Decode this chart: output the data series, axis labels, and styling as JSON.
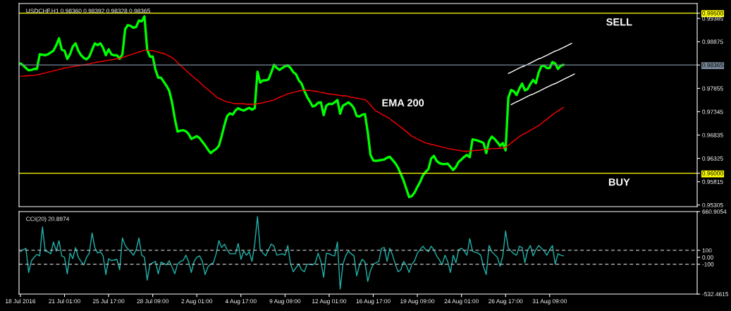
{
  "chart_data": [
    {
      "type": "line",
      "title": "USDCHF,H1 0.98360 0.98392 0.98328 0.98365",
      "categories": [
        null,
        null,
        null,
        null,
        null,
        null,
        null,
        null,
        null,
        null,
        null,
        null,
        null,
        null,
        null,
        null,
        null,
        null,
        null,
        null,
        null,
        null,
        null,
        null,
        null,
        null,
        null,
        null,
        null,
        null,
        null,
        null,
        null,
        null,
        null,
        null,
        null,
        null,
        null,
        null,
        null,
        null,
        null,
        null,
        null,
        null,
        null,
        null,
        null,
        null,
        null,
        null,
        null,
        null,
        null,
        null,
        null,
        null,
        null,
        null,
        null,
        null,
        null,
        null,
        null,
        null,
        null,
        null,
        null,
        null,
        null,
        null,
        null,
        null,
        null,
        null,
        null,
        null,
        null,
        null,
        null,
        null,
        null,
        null,
        null,
        null,
        null,
        null,
        null,
        null,
        null,
        null,
        null,
        null,
        null,
        null,
        null,
        null,
        null,
        null,
        null,
        null,
        null,
        null,
        null,
        null,
        null,
        null,
        null,
        null,
        null,
        null,
        null,
        null,
        null,
        null,
        null,
        null,
        null,
        null,
        null,
        null,
        null,
        null,
        null,
        null,
        null,
        null,
        null,
        null,
        null,
        null,
        null,
        null,
        null,
        null,
        null,
        null,
        null,
        null,
        null,
        null,
        null,
        null,
        null,
        null,
        null,
        null,
        null,
        null,
        null,
        null,
        null,
        null,
        null,
        null,
        null,
        null,
        null,
        null,
        null,
        null,
        null,
        null,
        null,
        null,
        null,
        null,
        null,
        null,
        null,
        null,
        null,
        null,
        null,
        null,
        null,
        null,
        null,
        null,
        null,
        null,
        null,
        null,
        null,
        null,
        null,
        null,
        null,
        null,
        null,
        null,
        null,
        null,
        null,
        null,
        null,
        null,
        null,
        null,
        null,
        null,
        null,
        null,
        null,
        null,
        null,
        null,
        null,
        null,
        null,
        null,
        null,
        null,
        null,
        null,
        null,
        null,
        null,
        null,
        null,
        null,
        null,
        null,
        null,
        null,
        null,
        null,
        null,
        null,
        null,
        null,
        null,
        null,
        null,
        null,
        null,
        null,
        null,
        null,
        null,
        null,
        null,
        null,
        null,
        null
      ],
      "tick_labels": "y",
      "ylim": [
        0.9527,
        0.9971
      ],
      "yticks": [
        {
          "value": 0.995,
          "label": "0.99500"
        },
        0.99385,
        0.98875,
        0.98365,
        0.97855,
        0.97345,
        0.96835,
        0.96325,
        {
          "value": 0.96,
          "label": "0.96000"
        },
        0.95815,
        0.95305
      ],
      "series": [
        {
          "color": "#00ff00",
          "values": [
            0.984,
            0.9836,
            0.983,
            0.9825,
            0.9826,
            0.9828,
            0.9828,
            0.986,
            0.9859,
            0.9858,
            0.986,
            0.9864,
            0.9868,
            0.988,
            0.9895,
            0.987,
            0.9868,
            0.985,
            0.986,
            0.9877,
            0.9884,
            0.9868,
            0.9858,
            0.9852,
            0.9849,
            0.9855,
            0.987,
            0.9884,
            0.988,
            0.9884,
            0.9874,
            0.9858,
            0.9871,
            0.986,
            0.9858,
            0.9858,
            0.985,
            0.986,
            0.9915,
            0.9924,
            0.9922,
            0.9918,
            0.992,
            0.9934,
            0.9932,
            0.9943,
            0.987,
            0.9855,
            0.9855,
            0.9826,
            0.9809,
            0.9809,
            0.98,
            0.9791,
            0.978,
            0.9755,
            0.972,
            0.9691,
            0.9693,
            0.9694,
            0.9692,
            0.9686,
            0.9675,
            0.9678,
            0.9681,
            0.9677,
            0.9669,
            0.9661,
            0.9652,
            0.9644,
            0.9649,
            0.9653,
            0.966,
            0.9681,
            0.9705,
            0.9725,
            0.9731,
            0.9728,
            0.9737,
            0.9742,
            0.9739,
            0.9737,
            0.974,
            0.9743,
            0.9739,
            0.9742,
            0.9822,
            0.9798,
            0.9803,
            0.9803,
            0.9805,
            0.982,
            0.9837,
            0.983,
            0.9826,
            0.983,
            0.9834,
            0.9836,
            0.983,
            0.9821,
            0.9816,
            0.9803,
            0.9796,
            0.978,
            0.9767,
            0.9757,
            0.9746,
            0.9748,
            0.9754,
            0.9755,
            0.9727,
            0.9748,
            0.9752,
            0.9751,
            0.9755,
            0.976,
            0.973,
            0.9748,
            0.9751,
            0.9755,
            0.975,
            0.9742,
            0.9725,
            0.9724,
            0.9728,
            0.9729,
            0.969,
            0.964,
            0.9628,
            0.9627,
            0.9628,
            0.9629,
            0.963,
            0.9634,
            0.9636,
            0.9629,
            0.9622,
            0.9612,
            0.9598,
            0.9584,
            0.9566,
            0.9548,
            0.955,
            0.9558,
            0.957,
            0.9581,
            0.9595,
            0.9603,
            0.9609,
            0.9632,
            0.9638,
            0.9627,
            0.9622,
            0.962,
            0.962,
            0.9621,
            0.9614,
            0.9607,
            0.9614,
            0.9625,
            0.963,
            0.9636,
            0.964,
            0.9635,
            0.9674,
            0.9673,
            0.9671,
            0.9669,
            0.9666,
            0.9644,
            0.967,
            0.968,
            0.9675,
            0.9668,
            0.966,
            0.9666,
            0.965,
            0.9765,
            0.9782,
            0.9779,
            0.9771,
            0.9785,
            0.9796,
            0.9781,
            0.9784,
            0.9795,
            0.9804,
            0.9797,
            0.982,
            0.9834,
            0.9835,
            0.983,
            0.983,
            0.9843,
            0.984,
            0.9828,
            0.9835,
            0.9837,
            null,
            null,
            null,
            null,
            null,
            null,
            null,
            null,
            null,
            null,
            null,
            null,
            null,
            null,
            null,
            null,
            null,
            null,
            null,
            null,
            null,
            null,
            null,
            null,
            null,
            null,
            null,
            null,
            null,
            null,
            null,
            null,
            null,
            null,
            null,
            null,
            null,
            null,
            null,
            null,
            null,
            null,
            null,
            null,
            null,
            null,
            null,
            null
          ]
        },
        {
          "name": "EMA 200",
          "color": "#ff0000",
          "values": [
            0.9812,
            0.9812,
            0.9813,
            0.9813,
            0.9814,
            0.9814,
            0.9815,
            0.9816,
            0.9818,
            0.9819,
            0.9821,
            0.9822,
            0.9824,
            0.9825,
            0.9827,
            0.9828,
            0.983,
            0.9831,
            0.9832,
            0.9833,
            0.9834,
            0.9835,
            0.9836,
            0.9837,
            0.9838,
            0.9839,
            0.9841,
            0.9842,
            0.9843,
            0.9844,
            0.9845,
            0.9846,
            0.9847,
            0.9848,
            0.9849,
            0.985,
            0.9851,
            0.9853,
            0.9855,
            0.9857,
            0.9859,
            0.9861,
            0.9863,
            0.9865,
            0.9867,
            0.9869,
            0.9869,
            0.9868,
            0.9868,
            0.9866,
            0.9865,
            0.9863,
            0.9862,
            0.9859,
            0.9856,
            0.9853,
            0.9848,
            0.9842,
            0.9836,
            0.9831,
            0.9825,
            0.982,
            0.9814,
            0.9809,
            0.9804,
            0.9799,
            0.9793,
            0.9788,
            0.9783,
            0.9778,
            0.9773,
            0.9767,
            0.9764,
            0.9761,
            0.9758,
            0.9756,
            0.9755,
            0.9753,
            0.9752,
            0.9752,
            0.9752,
            0.9752,
            0.9751,
            0.9751,
            0.9751,
            0.9751,
            0.9752,
            0.9753,
            0.9754,
            0.9756,
            0.9757,
            0.9759,
            0.976,
            0.9763,
            0.9766,
            0.9768,
            0.9771,
            0.9774,
            0.9775,
            0.9777,
            0.9778,
            0.978,
            0.9781,
            0.9781,
            0.9781,
            0.9781,
            0.978,
            0.9779,
            0.9778,
            0.9777,
            0.9776,
            0.9774,
            0.9773,
            0.9773,
            0.9772,
            0.9771,
            0.977,
            0.9769,
            0.9769,
            0.9768,
            0.9766,
            0.9765,
            0.9764,
            0.9763,
            0.9762,
            0.9761,
            0.9756,
            0.9749,
            0.9742,
            0.9736,
            0.9733,
            0.9729,
            0.9726,
            0.9723,
            0.9719,
            0.9714,
            0.971,
            0.9705,
            0.9701,
            0.9696,
            0.9691,
            0.9686,
            0.9681,
            0.9678,
            0.9675,
            0.9672,
            0.9669,
            0.9666,
            0.9665,
            0.9663,
            0.9662,
            0.966,
            0.9659,
            0.9657,
            0.9656,
            0.9654,
            0.9653,
            0.9652,
            0.9651,
            0.965,
            0.9649,
            0.9648,
            0.9648,
            0.9649,
            0.9649,
            0.965,
            0.965,
            0.9651,
            0.9652,
            0.9652,
            0.9653,
            0.9654,
            0.9654,
            0.9654,
            0.9655,
            0.9655,
            0.9657,
            0.9661,
            0.9666,
            0.9671,
            0.9675,
            0.968,
            0.9684,
            0.9687,
            0.969,
            0.9694,
            0.9697,
            0.9701,
            0.9704,
            0.9709,
            0.9714,
            0.9718,
            0.9723,
            0.9728,
            0.9732,
            0.9736,
            0.974,
            0.9744,
            null,
            null,
            null,
            null,
            null,
            null,
            null,
            null,
            null,
            null,
            null,
            null,
            null,
            null,
            null,
            null,
            null,
            null,
            null,
            null,
            null,
            null,
            null,
            null,
            null,
            null,
            null,
            null,
            null,
            null,
            null,
            null,
            null,
            null,
            null,
            null,
            null,
            null,
            null,
            null,
            null,
            null,
            null,
            null,
            null,
            null,
            null,
            null
          ]
        },
        {
          "color": "#ffffff",
          "values": [
            null,
            null,
            null,
            null,
            null,
            null,
            null,
            null,
            null,
            null,
            null,
            null,
            null,
            null,
            null,
            null,
            null,
            null,
            null,
            null,
            null,
            null,
            null,
            null,
            null,
            null,
            null,
            null,
            null,
            null,
            null,
            null,
            null,
            null,
            null,
            null,
            null,
            null,
            null,
            null,
            null,
            null,
            null,
            null,
            null,
            null,
            null,
            null,
            null,
            null,
            null,
            null,
            null,
            null,
            null,
            null,
            null,
            null,
            null,
            null,
            null,
            null,
            null,
            null,
            null,
            null,
            null,
            null,
            null,
            null,
            null,
            null,
            null,
            null,
            null,
            null,
            null,
            null,
            null,
            null,
            null,
            null,
            null,
            null,
            null,
            null,
            null,
            null,
            null,
            null,
            null,
            null,
            null,
            null,
            null,
            null,
            null,
            null,
            null,
            null,
            null,
            null,
            null,
            null,
            null,
            null,
            null,
            null,
            null,
            null,
            null,
            null,
            null,
            null,
            null,
            null,
            null,
            null,
            null,
            null,
            null,
            null,
            null,
            null,
            null,
            null,
            null,
            null,
            null,
            null,
            null,
            null,
            null,
            null,
            null,
            null,
            null,
            null,
            null,
            null,
            null,
            null,
            null,
            null,
            null,
            null,
            null,
            null,
            null,
            null,
            null,
            null,
            null,
            null,
            null,
            null,
            null,
            null,
            null,
            null,
            null,
            null,
            null,
            null,
            null,
            null,
            null,
            null,
            null,
            null,
            null,
            null,
            null,
            null,
            null,
            null,
            null,
            0.9818,
            0.9821,
            0.9824,
            0.9827,
            0.983,
            0.9833,
            0.9835,
            0.9838,
            0.9841,
            0.9844,
            0.9847,
            0.985,
            0.9852,
            0.9855,
            0.9858,
            0.9861,
            0.9864,
            0.9867,
            0.9869,
            0.9872,
            0.9875,
            0.9878,
            0.9881,
            0.9884,
            null,
            null,
            null,
            null,
            null,
            null,
            null,
            null,
            null,
            null,
            null,
            null,
            null,
            null,
            null,
            null,
            null,
            null,
            null,
            null,
            null,
            null,
            null,
            null,
            null,
            null,
            null,
            null,
            null,
            null,
            null,
            null,
            null,
            null,
            null,
            null,
            null,
            null,
            null,
            null,
            null,
            null,
            null,
            null,
            null
          ]
        },
        {
          "color": "#ffffff",
          "values": [
            null,
            null,
            null,
            null,
            null,
            null,
            null,
            null,
            null,
            null,
            null,
            null,
            null,
            null,
            null,
            null,
            null,
            null,
            null,
            null,
            null,
            null,
            null,
            null,
            null,
            null,
            null,
            null,
            null,
            null,
            null,
            null,
            null,
            null,
            null,
            null,
            null,
            null,
            null,
            null,
            null,
            null,
            null,
            null,
            null,
            null,
            null,
            null,
            null,
            null,
            null,
            null,
            null,
            null,
            null,
            null,
            null,
            null,
            null,
            null,
            null,
            null,
            null,
            null,
            null,
            null,
            null,
            null,
            null,
            null,
            null,
            null,
            null,
            null,
            null,
            null,
            null,
            null,
            null,
            null,
            null,
            null,
            null,
            null,
            null,
            null,
            null,
            null,
            null,
            null,
            null,
            null,
            null,
            null,
            null,
            null,
            null,
            null,
            null,
            null,
            null,
            null,
            null,
            null,
            null,
            null,
            null,
            null,
            null,
            null,
            null,
            null,
            null,
            null,
            null,
            null,
            null,
            null,
            null,
            null,
            null,
            null,
            null,
            null,
            null,
            null,
            null,
            null,
            null,
            null,
            null,
            null,
            null,
            null,
            null,
            null,
            null,
            null,
            null,
            null,
            null,
            null,
            null,
            null,
            null,
            null,
            null,
            null,
            null,
            null,
            null,
            null,
            null,
            null,
            null,
            null,
            null,
            null,
            null,
            null,
            null,
            null,
            null,
            null,
            null,
            null,
            null,
            null,
            null,
            null,
            null,
            null,
            null,
            null,
            null,
            null,
            null,
            null,
            0.975,
            0.9753,
            0.9756,
            0.9759,
            0.9762,
            0.9765,
            0.9768,
            0.9771,
            0.9773,
            0.9776,
            0.9779,
            0.9782,
            0.9785,
            0.9788,
            0.9791,
            0.9794,
            0.9796,
            0.9799,
            0.9802,
            0.9805,
            0.9808,
            0.9811,
            0.9814,
            0.9817,
            null,
            null,
            null,
            null,
            null,
            null,
            null,
            null,
            null,
            null,
            null,
            null,
            null,
            null,
            null,
            null,
            null,
            null,
            null,
            null,
            null,
            null,
            null,
            null,
            null,
            null,
            null,
            null,
            null,
            null,
            null,
            null,
            null,
            null,
            null,
            null,
            null,
            null,
            null,
            null,
            null,
            null,
            null,
            null
          ]
        }
      ],
      "ref_lines": [
        {
          "axis": "y",
          "value": 0.995,
          "label": "SELL",
          "color": "#ffff00"
        },
        {
          "axis": "y",
          "value": 0.98365,
          "color": "#778899"
        },
        {
          "axis": "y",
          "value": 0.96,
          "label": "BUY",
          "color": "#ffff00"
        }
      ]
    },
    {
      "type": "line",
      "title": "CCI(20) 20.8974",
      "categories": [
        "18 Jul 2016",
        null,
        null,
        null,
        null,
        null,
        null,
        null,
        null,
        null,
        null,
        null,
        null,
        null,
        null,
        null,
        "21 Jul 01:00",
        null,
        null,
        null,
        null,
        null,
        null,
        null,
        null,
        null,
        null,
        null,
        null,
        null,
        null,
        null,
        "25 Jul 17:00",
        null,
        null,
        null,
        null,
        null,
        null,
        null,
        null,
        null,
        null,
        null,
        null,
        null,
        null,
        null,
        "28 Jul 09:00",
        null,
        null,
        null,
        null,
        null,
        null,
        null,
        null,
        null,
        null,
        null,
        null,
        null,
        null,
        null,
        "2 Aug 01:00",
        null,
        null,
        null,
        null,
        null,
        null,
        null,
        null,
        null,
        null,
        null,
        null,
        null,
        null,
        null,
        "4 Aug 17:00",
        null,
        null,
        null,
        null,
        null,
        null,
        null,
        null,
        null,
        null,
        null,
        null,
        null,
        null,
        null,
        "9 Aug 09:00",
        null,
        null,
        null,
        null,
        null,
        null,
        null,
        null,
        null,
        null,
        null,
        null,
        null,
        null,
        null,
        "12 Aug 01:00",
        null,
        null,
        null,
        null,
        null,
        null,
        null,
        null,
        null,
        null,
        null,
        null,
        null,
        null,
        null,
        "16 Aug 17:00",
        null,
        null,
        null,
        null,
        null,
        null,
        null,
        null,
        null,
        null,
        null,
        null,
        null,
        null,
        null,
        "19 Aug 09:00",
        null,
        null,
        null,
        null,
        null,
        null,
        null,
        null,
        null,
        null,
        null,
        null,
        null,
        null,
        null,
        "24 Aug 01:00",
        null,
        null,
        null,
        null,
        null,
        null,
        null,
        null,
        null,
        null,
        null,
        null,
        null,
        null,
        null,
        "26 Aug 17:00",
        null,
        null,
        null,
        null,
        null,
        null,
        null,
        null,
        null,
        null,
        null,
        null,
        null,
        null,
        null,
        "31 Aug 09:00",
        null,
        null,
        null,
        null,
        null,
        null,
        null,
        null,
        null,
        null,
        null,
        null,
        null,
        null,
        null,
        null,
        null,
        null,
        null,
        null,
        null,
        null,
        null,
        null,
        null,
        null,
        null,
        null,
        null,
        null,
        null,
        null,
        null,
        null,
        null,
        null,
        null,
        null,
        null,
        null,
        null,
        null,
        null,
        null,
        null,
        null,
        null,
        null,
        null,
        null,
        null,
        null,
        null
      ],
      "ylim": [
        -532.4615,
        660.9054
      ],
      "yticks": [
        660.9054,
        100,
        {
          "value": 0,
          "label": "0.00"
        },
        -100,
        -532.4615
      ],
      "series": [
        {
          "color": "#20b2aa",
          "values": [
            80,
            110,
            130,
            -220,
            -50,
            0,
            40,
            20,
            440,
            90,
            80,
            50,
            220,
            90,
            240,
            20,
            0,
            -240,
            60,
            -20,
            140,
            0,
            -60,
            -110,
            0,
            60,
            350,
            140,
            60,
            80,
            20,
            -250,
            -20,
            -50,
            -40,
            -30,
            -180,
            280,
            170,
            120,
            80,
            30,
            110,
            280,
            30,
            0,
            -330,
            -100,
            -80,
            -60,
            -240,
            -70,
            -90,
            -110,
            -50,
            -140,
            -240,
            -100,
            -60,
            -50,
            30,
            -60,
            -220,
            -60,
            0,
            20,
            -60,
            -250,
            -140,
            -100,
            -80,
            50,
            240,
            140,
            190,
            110,
            50,
            50,
            50,
            200,
            -30,
            90,
            30,
            80,
            -60,
            190,
            590,
            110,
            60,
            20,
            110,
            190,
            160,
            30,
            40,
            50,
            30,
            170,
            -100,
            -210,
            -150,
            -100,
            -180,
            -210,
            -100,
            -100,
            -110,
            -80,
            60,
            -60,
            -290,
            60,
            50,
            30,
            20,
            220,
            -460,
            -100,
            20,
            90,
            50,
            20,
            -270,
            -110,
            -30,
            -70,
            -350,
            -190,
            -100,
            -80,
            -60,
            130,
            140,
            -60,
            130,
            30,
            -100,
            -210,
            -180,
            -60,
            -120,
            -220,
            -100,
            -50,
            60,
            110,
            160,
            110,
            80,
            160,
            110,
            20,
            -40,
            -110,
            30,
            -60,
            -220,
            30,
            -80,
            110,
            130,
            90,
            30,
            270,
            90,
            70,
            60,
            30,
            -140,
            -250,
            170,
            80,
            40,
            0,
            -130,
            20,
            380,
            130,
            90,
            50,
            30,
            160,
            140,
            -80,
            100,
            170,
            20,
            110,
            170,
            130,
            90,
            30,
            110,
            170,
            -100,
            50,
            30,
            20,
            null,
            null,
            null,
            null,
            null,
            null,
            null,
            null,
            null,
            null,
            null,
            null,
            null,
            null,
            null,
            null,
            null,
            null,
            null,
            null,
            null,
            null,
            null,
            null,
            null,
            null,
            null,
            null,
            null,
            null,
            null,
            null,
            null,
            null,
            null,
            null,
            null,
            null,
            null,
            null,
            null,
            null,
            null,
            null,
            null,
            null,
            null,
            null
          ]
        }
      ],
      "ref_lines": [
        {
          "axis": "y",
          "value": 100,
          "color": "#c0c0c0",
          "line_style": "dashed"
        },
        {
          "axis": "y",
          "value": -100,
          "color": "#c0c0c0",
          "line_style": "dashed"
        }
      ]
    }
  ]
}
